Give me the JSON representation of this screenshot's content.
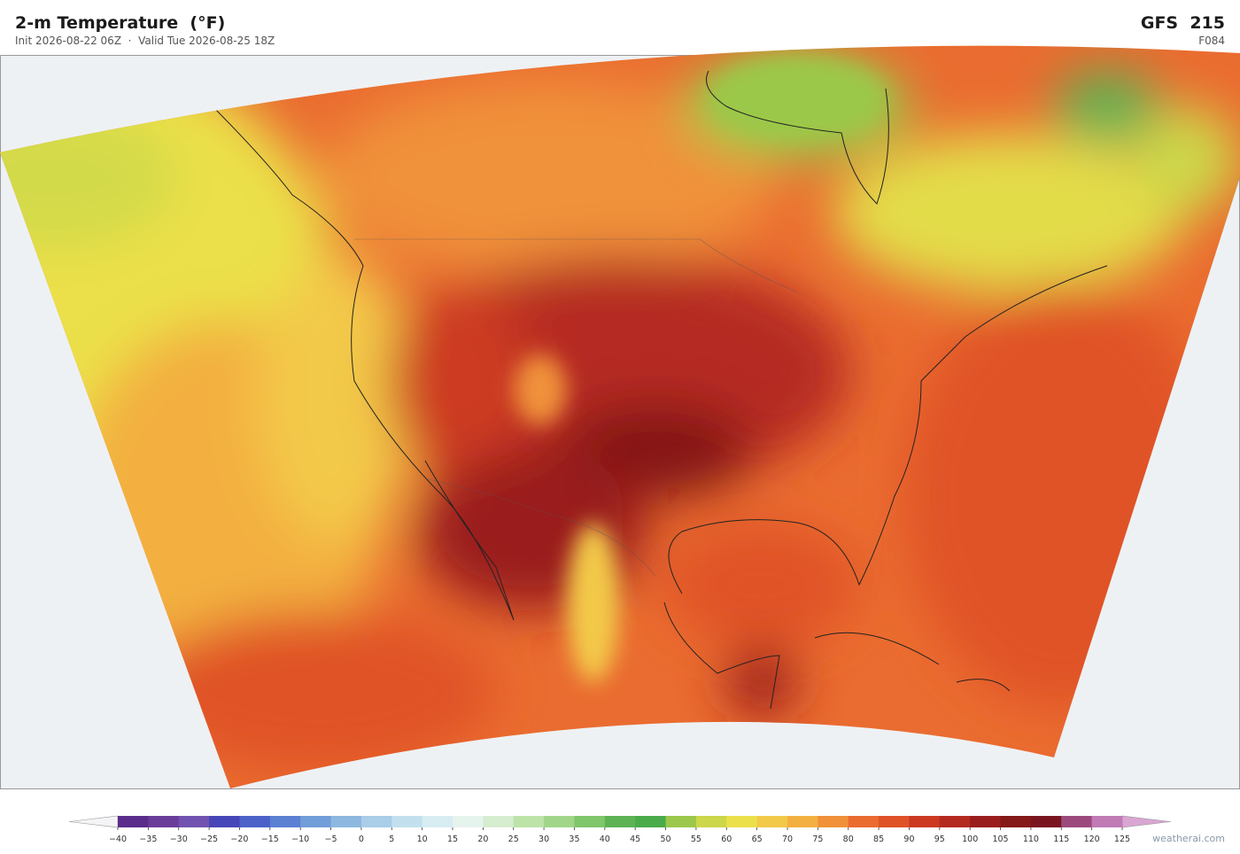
{
  "header": {
    "title": "2-m Temperature  (°F)",
    "subtitle": "Init 2026-08-22 06Z  ·  Valid Tue 2026-08-25 18Z",
    "model": "GFS  215",
    "forecast_hour": "F084"
  },
  "colorbar": {
    "ticks": [
      {
        "value": -40,
        "label": "−40"
      },
      {
        "value": -35,
        "label": "−35"
      },
      {
        "value": -30,
        "label": "−30"
      },
      {
        "value": -25,
        "label": "−25"
      },
      {
        "value": -20,
        "label": "−20"
      },
      {
        "value": -15,
        "label": "−15"
      },
      {
        "value": -10,
        "label": "−10"
      },
      {
        "value": -5,
        "label": "−5"
      },
      0,
      5,
      10,
      15,
      20,
      25,
      30,
      35,
      40,
      45,
      50,
      55,
      60,
      65,
      70,
      75,
      80,
      85,
      90,
      95,
      100,
      105,
      110,
      115,
      120,
      125
    ],
    "colors": [
      "#5a2d8c",
      "#6a3d9a",
      "#7252b0",
      "#4646b8",
      "#4c62c9",
      "#5c80d2",
      "#719dd9",
      "#8eb8e0",
      "#aacde8",
      "#c2e0ee",
      "#d7edf2",
      "#e6f4ee",
      "#d6edd0",
      "#bee3a8",
      "#a1d68a",
      "#80c66a",
      "#5db353",
      "#4aab4a",
      "#9bc84a",
      "#cdd74a",
      "#ebe04a",
      "#f3c94a",
      "#f3b040",
      "#f0913a",
      "#ea6c30",
      "#e05228",
      "#cc3a22",
      "#b52a20",
      "#9a1d1d",
      "#851818",
      "#7a1520",
      "#9c4a7e",
      "#c07ab4",
      "#d9a6d2"
    ],
    "under_color": "#f4f4f6",
    "over_color": "#d9a6d2"
  },
  "watermark": "weatherai.com"
}
